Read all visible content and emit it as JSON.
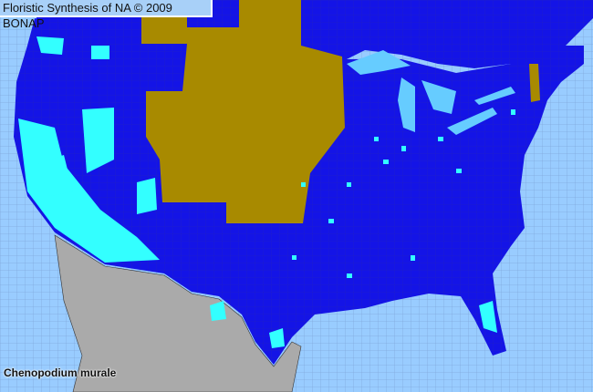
{
  "header": {
    "title": "Floristic Synthesis of NA © 2009 BONAP"
  },
  "map": {
    "species": "Chenopodium murale",
    "colors": {
      "ocean": "#99ccff",
      "lakes": "#66ccff",
      "present_state_blue": "#1414e6",
      "absent_state_tan": "#a88a00",
      "county_present_cyan": "#33ffff",
      "mexico_gray": "#aaaaaa",
      "county_lines": "#444466"
    }
  }
}
